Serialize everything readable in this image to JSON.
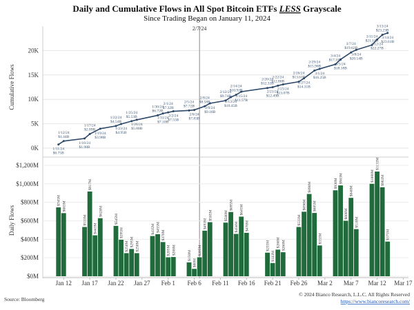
{
  "title_prefix": "Daily and Cumulative Flows in All Spot Bitcoin ETFs ",
  "title_emph": "LESS",
  "title_suffix": " Grayscale",
  "subtitle": "Since Trading Began on January 11, 2024",
  "source": "Source: Bloomberg",
  "copyright": "© 2024 Bianco Research, L.L.C. All Rights Reserved",
  "link": "https://www.biancoresearch.com/",
  "colors": {
    "line": "#2d4868",
    "label": "#3b5573",
    "bar": "#1f6b3b",
    "marker": "#888888",
    "link": "#1a4fb5"
  },
  "chart_data": [
    {
      "type": "line",
      "ylabel": "Cumulative Flows",
      "ylim": [
        0,
        25000
      ],
      "yticks": [
        0,
        5000,
        10000,
        15000,
        20000
      ],
      "ytick_labels": [
        "0K",
        "5K",
        "10K",
        "15K",
        "20K"
      ],
      "grid": true,
      "marker_line": {
        "date": "2024-02-07",
        "label": "2/7/24"
      },
      "points": [
        {
          "date": "2024-01-11",
          "value": 750,
          "label": "1/11/24",
          "value_label": "$0.75B"
        },
        {
          "date": "2024-01-12",
          "value": 1440,
          "label": "1/12/24",
          "value_label": "$1.44B"
        },
        {
          "date": "2024-01-16",
          "value": 1980,
          "label": "1/16/24",
          "value_label": "$1.98B"
        },
        {
          "date": "2024-01-17",
          "value": 2890,
          "label": "1/17/24",
          "value_label": "$2.89B"
        },
        {
          "date": "2024-01-19",
          "value": 3980,
          "label": "1/19/24",
          "value_label": "$3.98B"
        },
        {
          "date": "2024-01-22",
          "value": 4540,
          "label": "1/22/24",
          "value_label": "$4.54B"
        },
        {
          "date": "2024-01-23",
          "value": 4950,
          "label": "1/23/24",
          "value_label": "$4.95B"
        },
        {
          "date": "2024-01-25",
          "value": 5530,
          "label": "1/25/24",
          "value_label": "$5.53B"
        },
        {
          "date": "2024-01-26",
          "value": 5800,
          "label": "1/26/24",
          "value_label": "$5.80B"
        },
        {
          "date": "2024-01-30",
          "value": 6720,
          "label": "1/30/24",
          "value_label": "$6.72B"
        },
        {
          "date": "2024-01-31",
          "value": 7100,
          "label": "1/31/24",
          "value_label": "$7.10B"
        },
        {
          "date": "2024-02-01",
          "value": 7320,
          "label": "2/1/24",
          "value_label": "$7.32B"
        },
        {
          "date": "2024-02-02",
          "value": 7550,
          "label": "2/2/24",
          "value_label": "$7.55B"
        },
        {
          "date": "2024-02-05",
          "value": 7720,
          "label": "2/5/24",
          "value_label": "$7.72B"
        },
        {
          "date": "2024-02-06",
          "value": 7830,
          "label": "2/6/24",
          "value_label": "$7.83B"
        },
        {
          "date": "2024-02-08",
          "value": 8580,
          "label": "2/8/24",
          "value_label": "$8.58B"
        },
        {
          "date": "2024-02-09",
          "value": 9180,
          "label": "2/9/24",
          "value_label": "$9.18B"
        },
        {
          "date": "2024-02-12",
          "value": 9740,
          "label": "2/12/24",
          "value_label": "$9.74B"
        },
        {
          "date": "2024-02-13",
          "value": 10450,
          "label": "2/13/24",
          "value_label": "$10.45B"
        },
        {
          "date": "2024-02-14",
          "value": 10920,
          "label": "2/14/24",
          "value_label": "$10.92B"
        },
        {
          "date": "2024-02-15",
          "value": 11570,
          "label": "2/15/24",
          "value_label": "$11.57B"
        },
        {
          "date": "2024-02-20",
          "value": 12330,
          "label": "2/20/24",
          "value_label": "$12.33B"
        },
        {
          "date": "2024-02-21",
          "value": 12490,
          "label": "2/21/24",
          "value_label": "$12.49B"
        },
        {
          "date": "2024-02-22",
          "value": 12800,
          "label": "2/22/24",
          "value_label": "$12.80B"
        },
        {
          "date": "2024-02-23",
          "value": 13070,
          "label": "2/23/24",
          "value_label": "$13.07B"
        },
        {
          "date": "2024-02-26",
          "value": 13610,
          "label": "2/26/24",
          "value_label": "$13.61B"
        },
        {
          "date": "2024-02-27",
          "value": 14310,
          "label": "2/27/24",
          "value_label": "$14.31B"
        },
        {
          "date": "2024-02-29",
          "value": 15900,
          "label": "2/29/24",
          "value_label": "$15.90B"
        },
        {
          "date": "2024-03-01",
          "value": 16250,
          "label": "3/1/24",
          "value_label": "$16.25B"
        },
        {
          "date": "2024-03-04",
          "value": 17180,
          "label": "3/4/24",
          "value_label": "$17.18B"
        },
        {
          "date": "2024-03-05",
          "value": 18180,
          "label": "3/5/24",
          "value_label": "$18.18B"
        },
        {
          "date": "2024-03-07",
          "value": 19620,
          "label": "3/7/24",
          "value_label": "$19.62B"
        },
        {
          "date": "2024-03-08",
          "value": 20140,
          "label": "3/8/24",
          "value_label": "$20.14B"
        },
        {
          "date": "2024-03-11",
          "value": 21140,
          "label": "3/11/24",
          "value_label": "$21.14B"
        },
        {
          "date": "2024-03-12",
          "value": 22270,
          "label": "3/12/24",
          "value_label": "$22.27B"
        },
        {
          "date": "2024-03-13",
          "value": 23230,
          "label": "3/13/24",
          "value_label": "$23.23B"
        },
        {
          "date": "2024-03-14",
          "value": 23610,
          "label": "3/14/24",
          "value_label": "$23.61B"
        }
      ]
    },
    {
      "type": "bar",
      "ylabel": "Daily Flows",
      "ylim": [
        0,
        1200
      ],
      "yticks": [
        0,
        200,
        400,
        600,
        800,
        1000,
        1200
      ],
      "ytick_labels": [
        "$0M",
        "$200M",
        "$400M",
        "$600M",
        "$800M",
        "$1,000M",
        "$1,200M"
      ],
      "grid": true,
      "xlim": [
        "2024-01-08",
        "2024-03-18"
      ],
      "xticks": [
        "2024-01-12",
        "2024-01-17",
        "2024-01-22",
        "2024-01-27",
        "2024-02-01",
        "2024-02-06",
        "2024-02-11",
        "2024-02-16",
        "2024-02-21",
        "2024-02-26",
        "2024-03-02",
        "2024-03-07",
        "2024-03-12",
        "2024-03-17"
      ],
      "xtick_labels": [
        "Jan 12",
        "Jan 17",
        "Jan 22",
        "Jan 27",
        "Feb 1",
        "Feb 6",
        "Feb 11",
        "Feb 16",
        "Feb 21",
        "Feb 26",
        "Mar 2",
        "Mar 7",
        "Mar 12",
        "Mar 17"
      ],
      "bars": [
        [
          "2024-01-11",
          745
        ],
        [
          "2024-01-12",
          683
        ],
        [
          "2024-01-16",
          533
        ],
        [
          "2024-01-17",
          917
        ],
        [
          "2024-01-18",
          443
        ],
        [
          "2024-01-19",
          628
        ],
        [
          "2024-01-22",
          545
        ],
        [
          "2024-01-23",
          395
        ],
        [
          "2024-01-24",
          250
        ],
        [
          "2024-01-25",
          295
        ],
        [
          "2024-01-26",
          250
        ],
        [
          "2024-01-29",
          435
        ],
        [
          "2024-01-30",
          455
        ],
        [
          "2024-01-31",
          370
        ],
        [
          "2024-02-01",
          205
        ],
        [
          "2024-02-02",
          208
        ],
        [
          "2024-02-05",
          150
        ],
        [
          "2024-02-06",
          80
        ],
        [
          "2024-02-07",
          205
        ],
        [
          "2024-02-08",
          493
        ],
        [
          "2024-02-09",
          585
        ],
        [
          "2024-02-12",
          580
        ],
        [
          "2024-02-13",
          695
        ],
        [
          "2024-02-14",
          458
        ],
        [
          "2024-02-15",
          645
        ],
        [
          "2024-02-16",
          470
        ],
        [
          "2024-02-20",
          255
        ],
        [
          "2024-02-21",
          143
        ],
        [
          "2024-02-22",
          288
        ],
        [
          "2024-02-23",
          260
        ],
        [
          "2024-02-26",
          533
        ],
        [
          "2024-02-27",
          698
        ],
        [
          "2024-02-28",
          890
        ],
        [
          "2024-02-29",
          685
        ],
        [
          "2024-03-01",
          333
        ],
        [
          "2024-03-04",
          930
        ],
        [
          "2024-03-05",
          983
        ],
        [
          "2024-03-06",
          600
        ],
        [
          "2024-03-07",
          848
        ],
        [
          "2024-03-08",
          510
        ],
        [
          "2024-03-11",
          1000
        ],
        [
          "2024-03-12",
          1133
        ],
        [
          "2024-03-13",
          963
        ],
        [
          "2024-03-14",
          375
        ]
      ]
    }
  ]
}
